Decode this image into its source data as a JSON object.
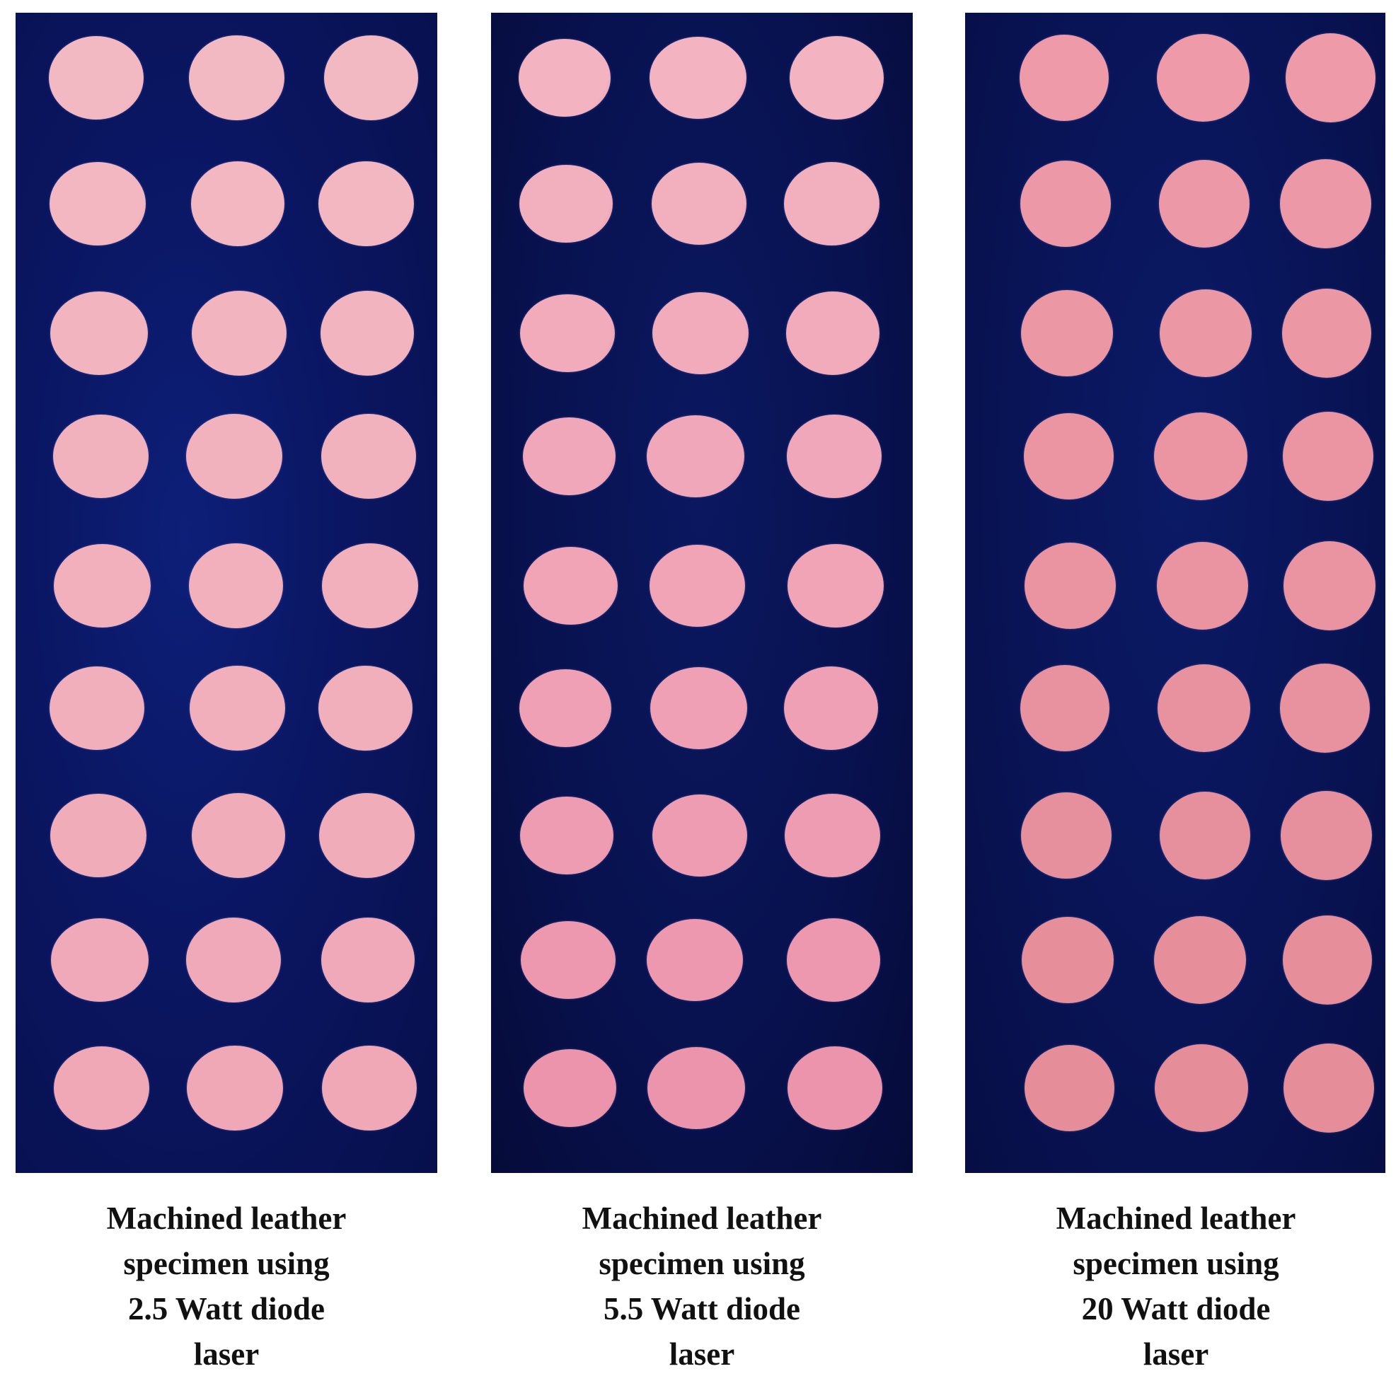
{
  "panels": [
    {
      "disc_color": "#f2b9c2",
      "disc_color_lower": "#f0a7b6",
      "caption": [
        "Machined leather",
        "specimen using",
        "2.5 Watt diode",
        "laser"
      ]
    },
    {
      "disc_color": "#f3b3c0",
      "disc_color_lower": "#ec94ac",
      "caption": [
        "Machined leather",
        "specimen using",
        "5.5 Watt diode",
        "laser"
      ]
    },
    {
      "disc_color": "#ee9aa8",
      "disc_color_lower": "#e58d99",
      "caption": [
        "Machined leather",
        "specimen using",
        "20 Watt diode",
        "laser"
      ]
    }
  ],
  "grid": {
    "rows": 9,
    "columns": 3
  },
  "background_color": "#0a1662"
}
